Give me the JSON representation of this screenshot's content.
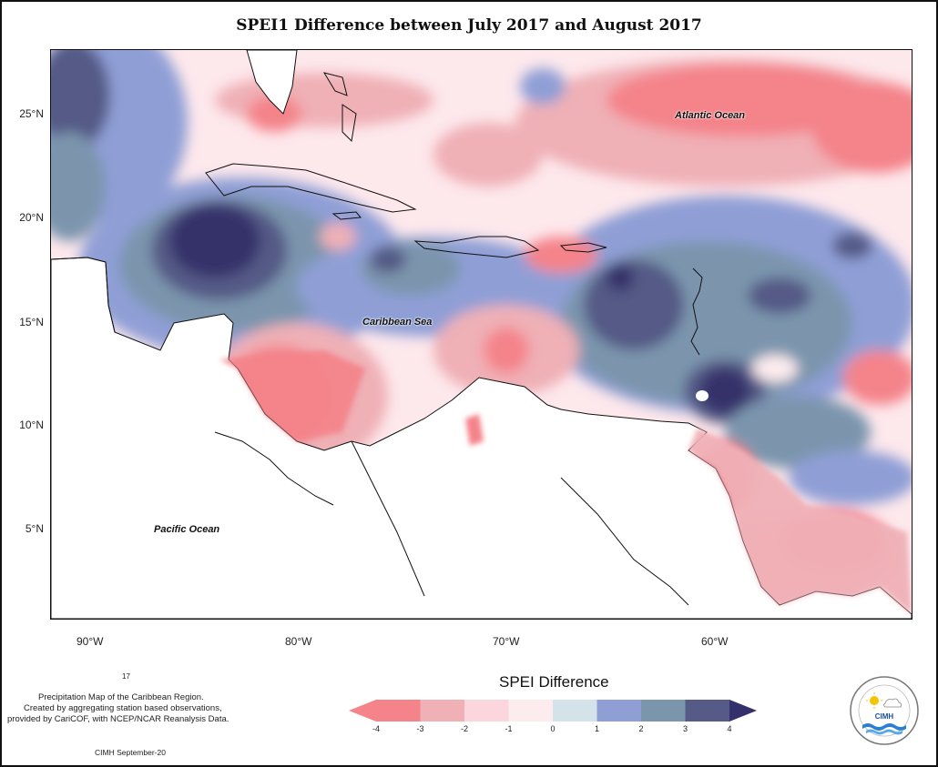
{
  "title": "SPEI1 Difference between July 2017 and August 2017",
  "axes": {
    "x_ticks": [
      "90°W",
      "80°W",
      "70°W",
      "60°W"
    ],
    "y_ticks": [
      "25°N",
      "20°N",
      "15°N",
      "10°N",
      "5°N"
    ]
  },
  "places": {
    "atlantic": "Atlantic Ocean",
    "caribbean": "Caribbean Sea",
    "pacific": "Pacific Ocean"
  },
  "legend": {
    "title": "SPEI Difference",
    "labels": [
      "-4",
      "-3",
      "-2",
      "-1",
      "0",
      "1",
      "2",
      "3",
      "4"
    ],
    "colors": [
      "#f4838a",
      "#efb0b6",
      "#fbd6dc",
      "#fdecee",
      "#d4e3e9",
      "#8f9fd6",
      "#7b95ad",
      "#555a86",
      "#34306b"
    ]
  },
  "notes": {
    "number": "17",
    "line1": "Precipitation Map of the Caribbean Region.",
    "line2": "Created by aggregating station based observations,",
    "line3": "provided by CariCOF, with NCEP/NCAR Reanalysis Data.",
    "credit": "CIMH September-20"
  },
  "logo": {
    "text": "CIMH"
  }
}
